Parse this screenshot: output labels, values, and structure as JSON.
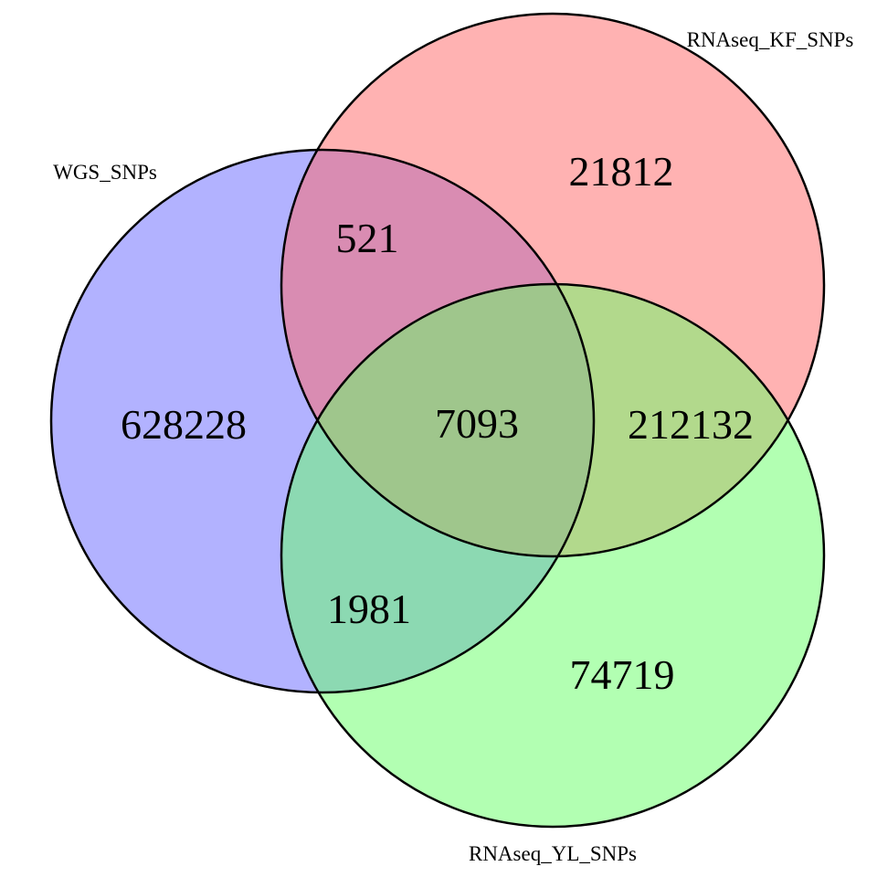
{
  "venn": {
    "sets": [
      {
        "name": "WGS_SNPs",
        "color": "#6666ff"
      },
      {
        "name": "RNAseq_KF_SNPs",
        "color": "#ff6666"
      },
      {
        "name": "RNAseq_YL_SNPs",
        "color": "#66ff66"
      }
    ],
    "regions": {
      "wgs_only": "628228",
      "kf_only": "21812",
      "yl_only": "74719",
      "wgs_kf": "521",
      "wgs_yl": "1981",
      "kf_yl": "212132",
      "all_three": "7093"
    }
  }
}
